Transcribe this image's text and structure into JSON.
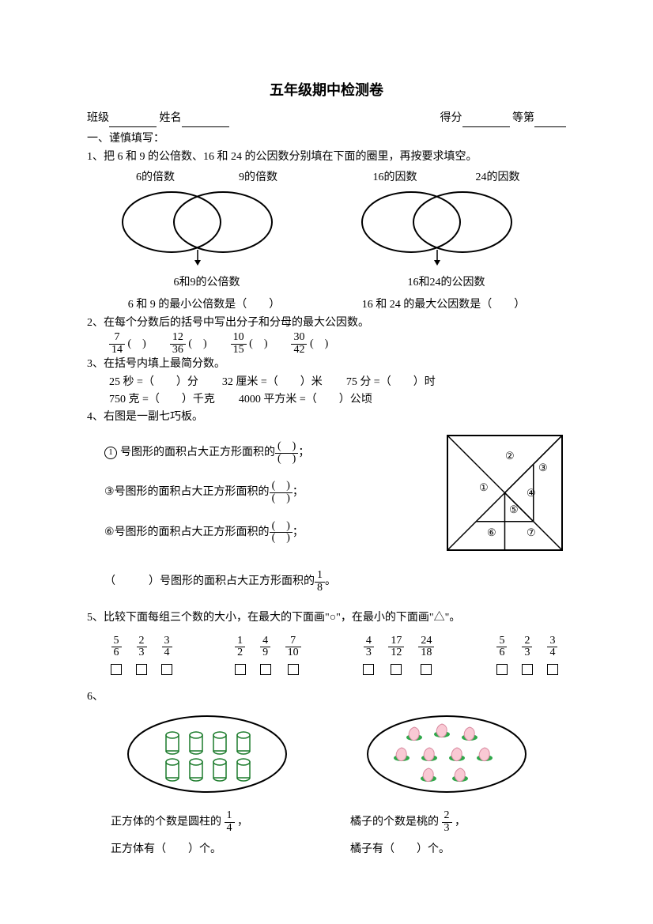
{
  "title": "五年级期中检测卷",
  "header": {
    "class_label": "班级",
    "name_label": "姓名",
    "score_label": "得分",
    "grade_label": "等第"
  },
  "section1_title": "一、谨慎填写：",
  "q1": {
    "text": "1、把 6 和 9 的公倍数、16 和 24 的公因数分别填在下面的圈里，再按要求填空。",
    "venn1": {
      "left": "6的倍数",
      "right": "9的倍数",
      "bottom": "6和9的公倍数"
    },
    "venn2": {
      "left": "16的因数",
      "right": "24的因数",
      "bottom": "16和24的公因数"
    },
    "ans1": "6 和 9 的最小公倍数是（　　）",
    "ans2": "16 和 24 的最大公因数是（　　）"
  },
  "q2": {
    "text": "2、在每个分数后的括号中写出分子和分母的最大公因数。",
    "fracs": [
      {
        "n": "7",
        "d": "14"
      },
      {
        "n": "12",
        "d": "36"
      },
      {
        "n": "10",
        "d": "15"
      },
      {
        "n": "30",
        "d": "42"
      }
    ],
    "paren": "(　)"
  },
  "q3": {
    "text": "3、在括号内填上最简分数。",
    "items1": [
      "25 秒 =（　　）分",
      "32 厘米 =（　　）米",
      "75 分 =（　　）时"
    ],
    "items2": [
      "750 克 =（　　）千克",
      "4000 平方米 =（　　）公顷"
    ]
  },
  "q4": {
    "text": "4、右图是一副七巧板。",
    "line1_pre": " 号图形的面积占大正方形面积的",
    "line3_pre": " 号图形的面积占大正方形面积的",
    "line6_pre": " 号图形的面积占大正方形面积的",
    "semicolon": "；",
    "line4_pre": "（　　　）号图形的面积占大正方形面积的",
    "line4_frac": {
      "n": "1",
      "d": "8"
    },
    "period": "。",
    "labels": [
      "①",
      "②",
      "③",
      "④",
      "⑤",
      "⑥",
      "⑦"
    ]
  },
  "q5": {
    "text": "5、比较下面每组三个数的大小，在最大的下面画\"○\"，在最小的下面画\"△\"。",
    "groups": [
      [
        {
          "n": "5",
          "d": "6"
        },
        {
          "n": "2",
          "d": "3"
        },
        {
          "n": "3",
          "d": "4"
        }
      ],
      [
        {
          "n": "1",
          "d": "2"
        },
        {
          "n": "4",
          "d": "9"
        },
        {
          "n": "7",
          "d": "10"
        }
      ],
      [
        {
          "n": "4",
          "d": "3"
        },
        {
          "n": "17",
          "d": "12"
        },
        {
          "n": "24",
          "d": "18"
        }
      ],
      [
        {
          "n": "5",
          "d": "6"
        },
        {
          "n": "2",
          "d": "3"
        },
        {
          "n": "3",
          "d": "4"
        }
      ]
    ]
  },
  "q6": {
    "label": "6、",
    "left": {
      "line1_a": "正方体的个数是圆柱的",
      "frac": {
        "n": "1",
        "d": "4"
      },
      "line1_b": "，",
      "line2": "正方体有（　　）个。"
    },
    "right": {
      "line1_a": "橘子的个数是桃的",
      "frac": {
        "n": "2",
        "d": "3"
      },
      "line1_b": "，",
      "line2": "橘子有（　　）个。"
    }
  },
  "colors": {
    "cylinder_stroke": "#1a7a2a",
    "cylinder_fill": "#ffffff",
    "peach_body": "#f9c9d4",
    "peach_leaf": "#2fa84a",
    "peach_stroke": "#d88aa0",
    "oval_stroke": "#000000"
  }
}
